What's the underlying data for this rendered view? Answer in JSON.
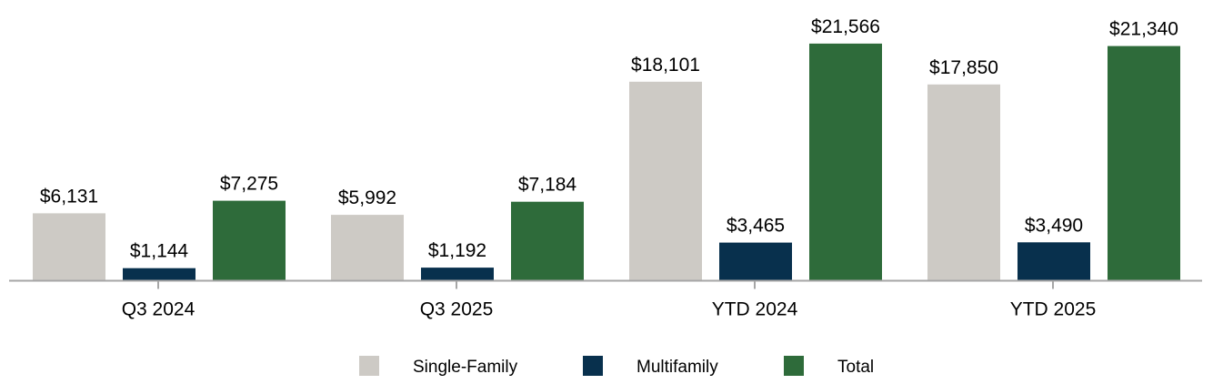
{
  "chart_data": {
    "type": "bar",
    "categories": [
      "Q3 2024",
      "Q3 2025",
      "YTD 2024",
      "YTD 2025"
    ],
    "series": [
      {
        "name": "Single-Family",
        "color": "#cdcac5",
        "values": [
          6131,
          5992,
          18101,
          17850
        ],
        "labels": [
          "$6,131",
          "$5,992",
          "$18,101",
          "$17,850"
        ]
      },
      {
        "name": "Multifamily",
        "color": "#08304d",
        "values": [
          1144,
          1192,
          3465,
          3490
        ],
        "labels": [
          "$1,144",
          "$1,192",
          "$3,465",
          "$3,490"
        ]
      },
      {
        "name": "Total",
        "color": "#2e6b3a",
        "values": [
          7275,
          7184,
          21566,
          21340
        ],
        "labels": [
          "$7,275",
          "$7,184",
          "$21,566",
          "$21,340"
        ]
      }
    ],
    "ylim": [
      0,
      24000
    ],
    "grid": false,
    "legend_position": "bottom-center",
    "axis_color": "#a6a6a6"
  }
}
